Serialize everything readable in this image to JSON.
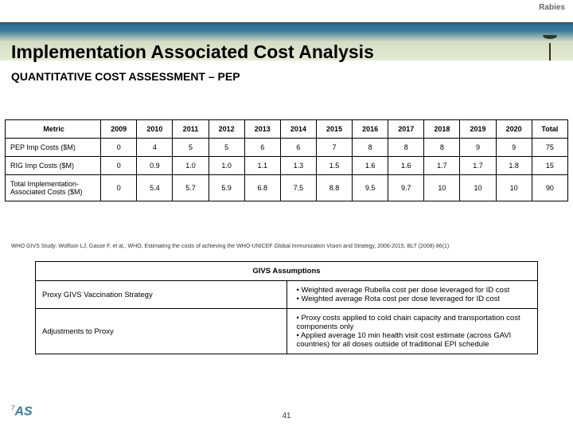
{
  "brand": "Rabies",
  "title": "Implementation Associated Cost Analysis",
  "subtitle": "QUANTITATIVE COST ASSESSMENT – PEP",
  "costTable": {
    "headers": [
      "Metric",
      "2009",
      "2010",
      "2011",
      "2012",
      "2013",
      "2014",
      "2015",
      "2016",
      "2017",
      "2018",
      "2019",
      "2020",
      "Total"
    ],
    "rows": [
      {
        "metric": "PEP Imp Costs ($M)",
        "vals": [
          "0",
          "4",
          "5",
          "5",
          "6",
          "6",
          "7",
          "8",
          "8",
          "8",
          "9",
          "9",
          "75"
        ]
      },
      {
        "metric": "RIG Imp Costs ($M)",
        "vals": [
          "0",
          "0.9",
          "1.0",
          "1.0",
          "1.1",
          "1.3",
          "1.5",
          "1.6",
          "1.6",
          "1.7",
          "1.7",
          "1.8",
          "15"
        ]
      },
      {
        "metric": "Total Implementation-Associated Costs ($M)",
        "vals": [
          "0",
          "5.4",
          "5.7",
          "5.9",
          "6.8",
          "7.5",
          "8.8",
          "9.5",
          "9.7",
          "10",
          "10",
          "10",
          "90"
        ]
      }
    ]
  },
  "citation": "WHO GIVS Study:   Wolfson LJ, Gasse F, et al., WHO, Estimating the costs of achieving the WHO-UNICEF Global Immunization Vision and Strategy, 2006-2015, BLT (2008) 86(1)",
  "assumptions": {
    "header": "GIVS Assumptions",
    "rows": [
      {
        "label": "Proxy GIVS Vaccination Strategy",
        "bullets": [
          "Weighted average Rubella cost per dose leveraged for ID cost",
          "Weighted average Rota cost per dose leveraged for ID cost"
        ]
      },
      {
        "label": "Adjustments to Proxy",
        "bullets": [
          "Proxy costs applied to cold chain capacity and transportation cost components only",
          "Applied average 10 min health visit cost estimate (across GAVI countries) for all doses outside of traditional EPI schedule"
        ]
      }
    ]
  },
  "pageNumber": "41",
  "logoText": "AS"
}
